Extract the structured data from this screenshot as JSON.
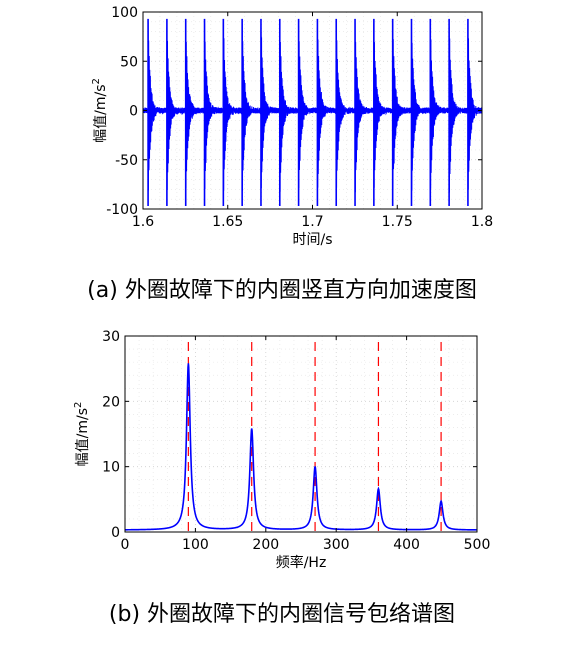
{
  "chart_data": [
    {
      "type": "line",
      "caption": "(a) 外圈故障下的内圈竖直方向加速度图",
      "xlabel": "时间/s",
      "ylabel": "幅值/m/s",
      "ylabel_superscript": "2",
      "xlim": [
        1.6,
        1.8
      ],
      "ylim": [
        -100,
        100
      ],
      "xticks": [
        "1.6",
        "1.65",
        "1.7",
        "1.75",
        "1.8"
      ],
      "yticks": [
        "100",
        "50",
        "0",
        "-50",
        "-100"
      ],
      "grid": true,
      "series": [
        {
          "color": "#0000ff",
          "impulse_times": [
            1.603,
            1.6141,
            1.6252,
            1.6363,
            1.6474,
            1.6585,
            1.6696,
            1.6807,
            1.6918,
            1.7029,
            1.714,
            1.7251,
            1.7362,
            1.7473,
            1.7584,
            1.7695,
            1.7806,
            1.7917
          ],
          "peak_positive": 93,
          "peak_negative": -97,
          "decay_time": 0.004
        }
      ]
    },
    {
      "type": "line",
      "caption": "(b) 外圈故障下的内圈信号包络谱图",
      "xlabel": "频率/Hz",
      "ylabel": "幅值/m/s",
      "ylabel_superscript": "2",
      "xlim": [
        0,
        500
      ],
      "ylim": [
        0,
        30
      ],
      "xticks": [
        "0",
        "100",
        "200",
        "300",
        "400",
        "500"
      ],
      "yticks": [
        "30",
        "20",
        "10",
        "0"
      ],
      "grid": true,
      "series": [
        {
          "color": "#0000ff",
          "peaks": [
            {
              "x": 90,
              "y": 25.5
            },
            {
              "x": 180,
              "y": 15.5
            },
            {
              "x": 270,
              "y": 9.7
            },
            {
              "x": 360,
              "y": 6.3
            },
            {
              "x": 449,
              "y": 4.4
            }
          ],
          "baseline": 0.3
        },
        {
          "color": "#ff0000",
          "style": "dashed-vertical",
          "x": [
            90,
            180,
            270,
            360,
            449
          ]
        }
      ]
    }
  ]
}
